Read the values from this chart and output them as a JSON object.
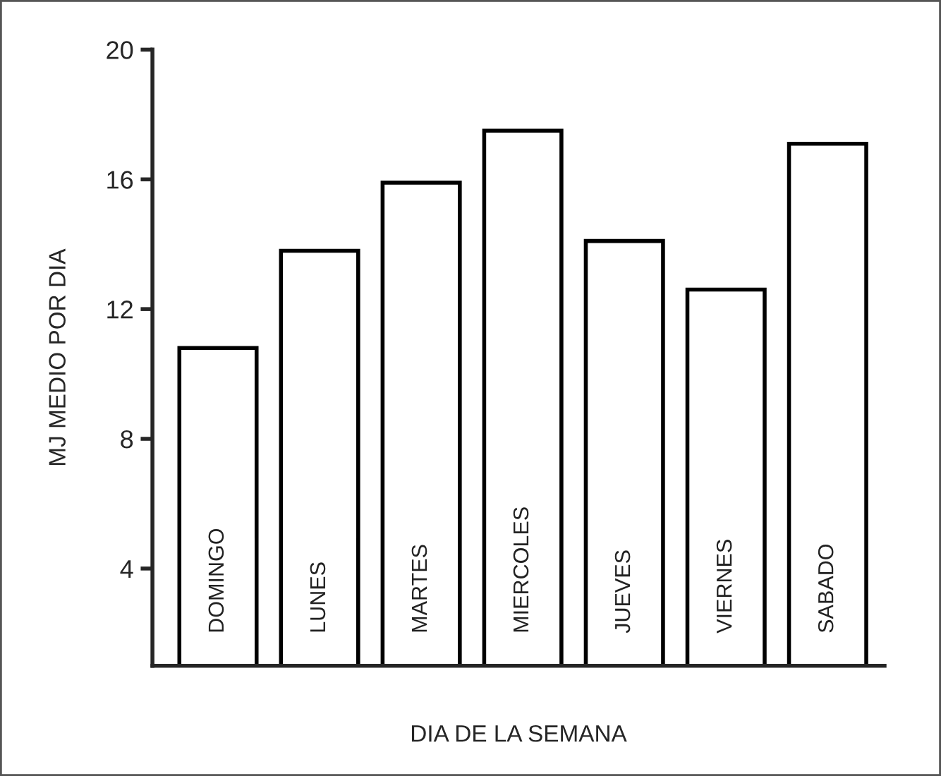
{
  "chart_data": {
    "type": "bar",
    "categories": [
      "DOMINGO",
      "LUNES",
      "MARTES",
      "MIERCOLES",
      "JUEVES",
      "VIERNES",
      "SABADO"
    ],
    "values": [
      10.8,
      13.8,
      15.9,
      17.5,
      14.1,
      12.6,
      17.1
    ],
    "color": "#ffffff",
    "xlabel": "DIA DE LA SEMANA",
    "ylabel": "MJ MEDIO POR DIA",
    "ylim": [
      1,
      20
    ],
    "yticks": [
      4,
      8,
      12,
      16,
      {
        "value": 20,
        "label": "20"
      }
    ],
    "grid": false,
    "legend": false
  }
}
